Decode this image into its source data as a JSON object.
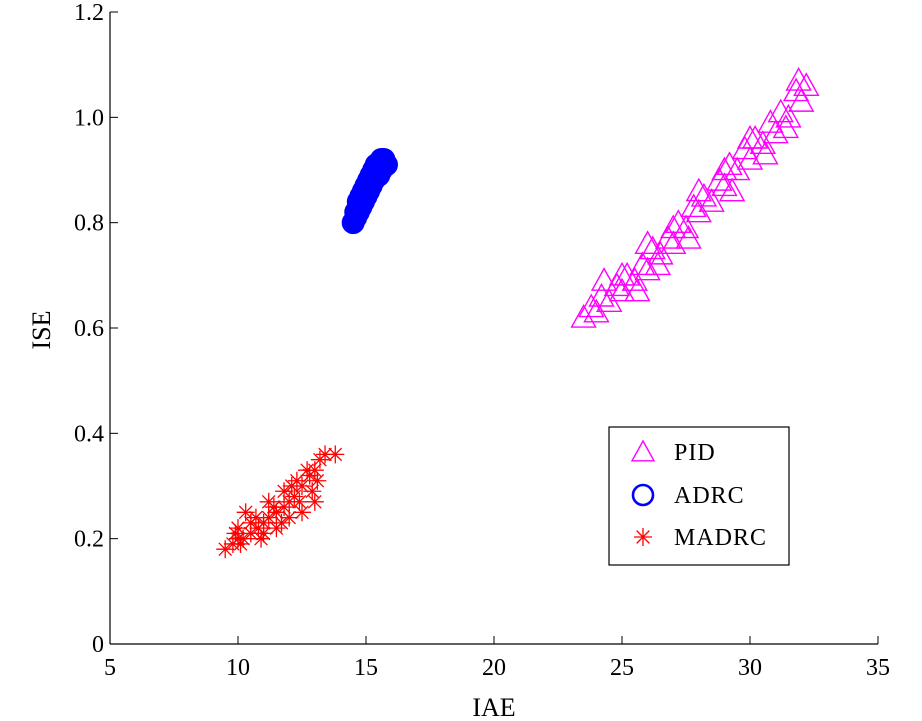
{
  "chart_data": {
    "type": "scatter",
    "title": "",
    "xlabel": "IAE",
    "ylabel": "ISE",
    "xlim": [
      5,
      35
    ],
    "ylim": [
      0,
      1.2
    ],
    "xticks": [
      5,
      10,
      15,
      20,
      25,
      30,
      35
    ],
    "yticks": [
      0,
      0.2,
      0.4,
      0.6,
      0.8,
      1.0,
      1.2
    ],
    "xtick_labels": [
      "5",
      "10",
      "15",
      "20",
      "25",
      "30",
      "35"
    ],
    "ytick_labels": [
      "0",
      "0.2",
      "0.4",
      "0.6",
      "0.8",
      "1.0",
      "1.2"
    ],
    "grid": false,
    "legend_position": "lower-right",
    "series": [
      {
        "name": "PID",
        "marker": "triangle",
        "color": "#ff00ff",
        "points": [
          [
            23.5,
            0.62
          ],
          [
            23.8,
            0.64
          ],
          [
            24.0,
            0.63
          ],
          [
            24.2,
            0.66
          ],
          [
            24.5,
            0.65
          ],
          [
            24.8,
            0.68
          ],
          [
            25.0,
            0.67
          ],
          [
            25.2,
            0.7
          ],
          [
            25.5,
            0.69
          ],
          [
            25.8,
            0.72
          ],
          [
            26.0,
            0.71
          ],
          [
            26.2,
            0.75
          ],
          [
            26.5,
            0.74
          ],
          [
            26.8,
            0.77
          ],
          [
            27.0,
            0.76
          ],
          [
            27.2,
            0.8
          ],
          [
            27.5,
            0.79
          ],
          [
            27.8,
            0.83
          ],
          [
            28.0,
            0.82
          ],
          [
            28.2,
            0.85
          ],
          [
            28.5,
            0.84
          ],
          [
            28.8,
            0.88
          ],
          [
            29.0,
            0.87
          ],
          [
            29.2,
            0.91
          ],
          [
            29.5,
            0.9
          ],
          [
            29.8,
            0.94
          ],
          [
            30.0,
            0.92
          ],
          [
            30.2,
            0.96
          ],
          [
            30.5,
            0.95
          ],
          [
            30.8,
            0.99
          ],
          [
            31.0,
            0.97
          ],
          [
            31.2,
            1.01
          ],
          [
            31.5,
            1.0
          ],
          [
            31.8,
            1.05
          ],
          [
            32.0,
            1.03
          ],
          [
            32.2,
            1.06
          ],
          [
            31.9,
            1.07
          ],
          [
            26.0,
            0.76
          ],
          [
            27.0,
            0.79
          ],
          [
            28.0,
            0.86
          ],
          [
            29.0,
            0.9
          ],
          [
            30.0,
            0.96
          ],
          [
            25.0,
            0.7
          ],
          [
            24.3,
            0.69
          ],
          [
            30.6,
            0.93
          ],
          [
            29.3,
            0.86
          ],
          [
            27.6,
            0.77
          ],
          [
            26.4,
            0.72
          ],
          [
            25.6,
            0.67
          ],
          [
            31.4,
            0.98
          ]
        ]
      },
      {
        "name": "ADRC",
        "marker": "circle",
        "color": "#0000ff",
        "points": [
          [
            14.5,
            0.8
          ],
          [
            14.6,
            0.82
          ],
          [
            14.7,
            0.84
          ],
          [
            14.8,
            0.85
          ],
          [
            14.9,
            0.86
          ],
          [
            15.0,
            0.87
          ],
          [
            15.1,
            0.88
          ],
          [
            15.2,
            0.89
          ],
          [
            15.3,
            0.9
          ],
          [
            15.4,
            0.91
          ],
          [
            15.5,
            0.91
          ],
          [
            15.6,
            0.92
          ],
          [
            15.7,
            0.92
          ],
          [
            15.8,
            0.91
          ],
          [
            14.6,
            0.81
          ],
          [
            14.8,
            0.83
          ],
          [
            15.0,
            0.85
          ],
          [
            15.2,
            0.87
          ],
          [
            15.4,
            0.89
          ],
          [
            15.6,
            0.9
          ],
          [
            14.7,
            0.82
          ],
          [
            15.1,
            0.86
          ],
          [
            15.5,
            0.89
          ],
          [
            14.9,
            0.84
          ],
          [
            15.3,
            0.88
          ]
        ]
      },
      {
        "name": "MADRC",
        "marker": "star",
        "color": "#ff0000",
        "points": [
          [
            9.5,
            0.18
          ],
          [
            9.8,
            0.19
          ],
          [
            10.0,
            0.2
          ],
          [
            10.2,
            0.2
          ],
          [
            10.5,
            0.21
          ],
          [
            10.8,
            0.22
          ],
          [
            11.0,
            0.23
          ],
          [
            11.2,
            0.24
          ],
          [
            11.5,
            0.25
          ],
          [
            11.8,
            0.26
          ],
          [
            12.0,
            0.27
          ],
          [
            12.2,
            0.28
          ],
          [
            12.5,
            0.3
          ],
          [
            12.8,
            0.32
          ],
          [
            13.0,
            0.33
          ],
          [
            13.2,
            0.35
          ],
          [
            13.4,
            0.36
          ],
          [
            13.8,
            0.36
          ],
          [
            10.0,
            0.22
          ],
          [
            10.5,
            0.23
          ],
          [
            11.0,
            0.21
          ],
          [
            11.5,
            0.22
          ],
          [
            12.0,
            0.24
          ],
          [
            12.5,
            0.25
          ],
          [
            10.3,
            0.25
          ],
          [
            11.2,
            0.27
          ],
          [
            11.8,
            0.29
          ],
          [
            12.3,
            0.31
          ],
          [
            12.9,
            0.29
          ],
          [
            13.0,
            0.27
          ],
          [
            9.9,
            0.21
          ],
          [
            10.7,
            0.24
          ],
          [
            11.4,
            0.26
          ],
          [
            12.1,
            0.3
          ],
          [
            12.7,
            0.33
          ],
          [
            10.9,
            0.2
          ],
          [
            11.7,
            0.23
          ],
          [
            12.4,
            0.27
          ],
          [
            13.1,
            0.31
          ],
          [
            10.1,
            0.19
          ]
        ]
      }
    ]
  }
}
